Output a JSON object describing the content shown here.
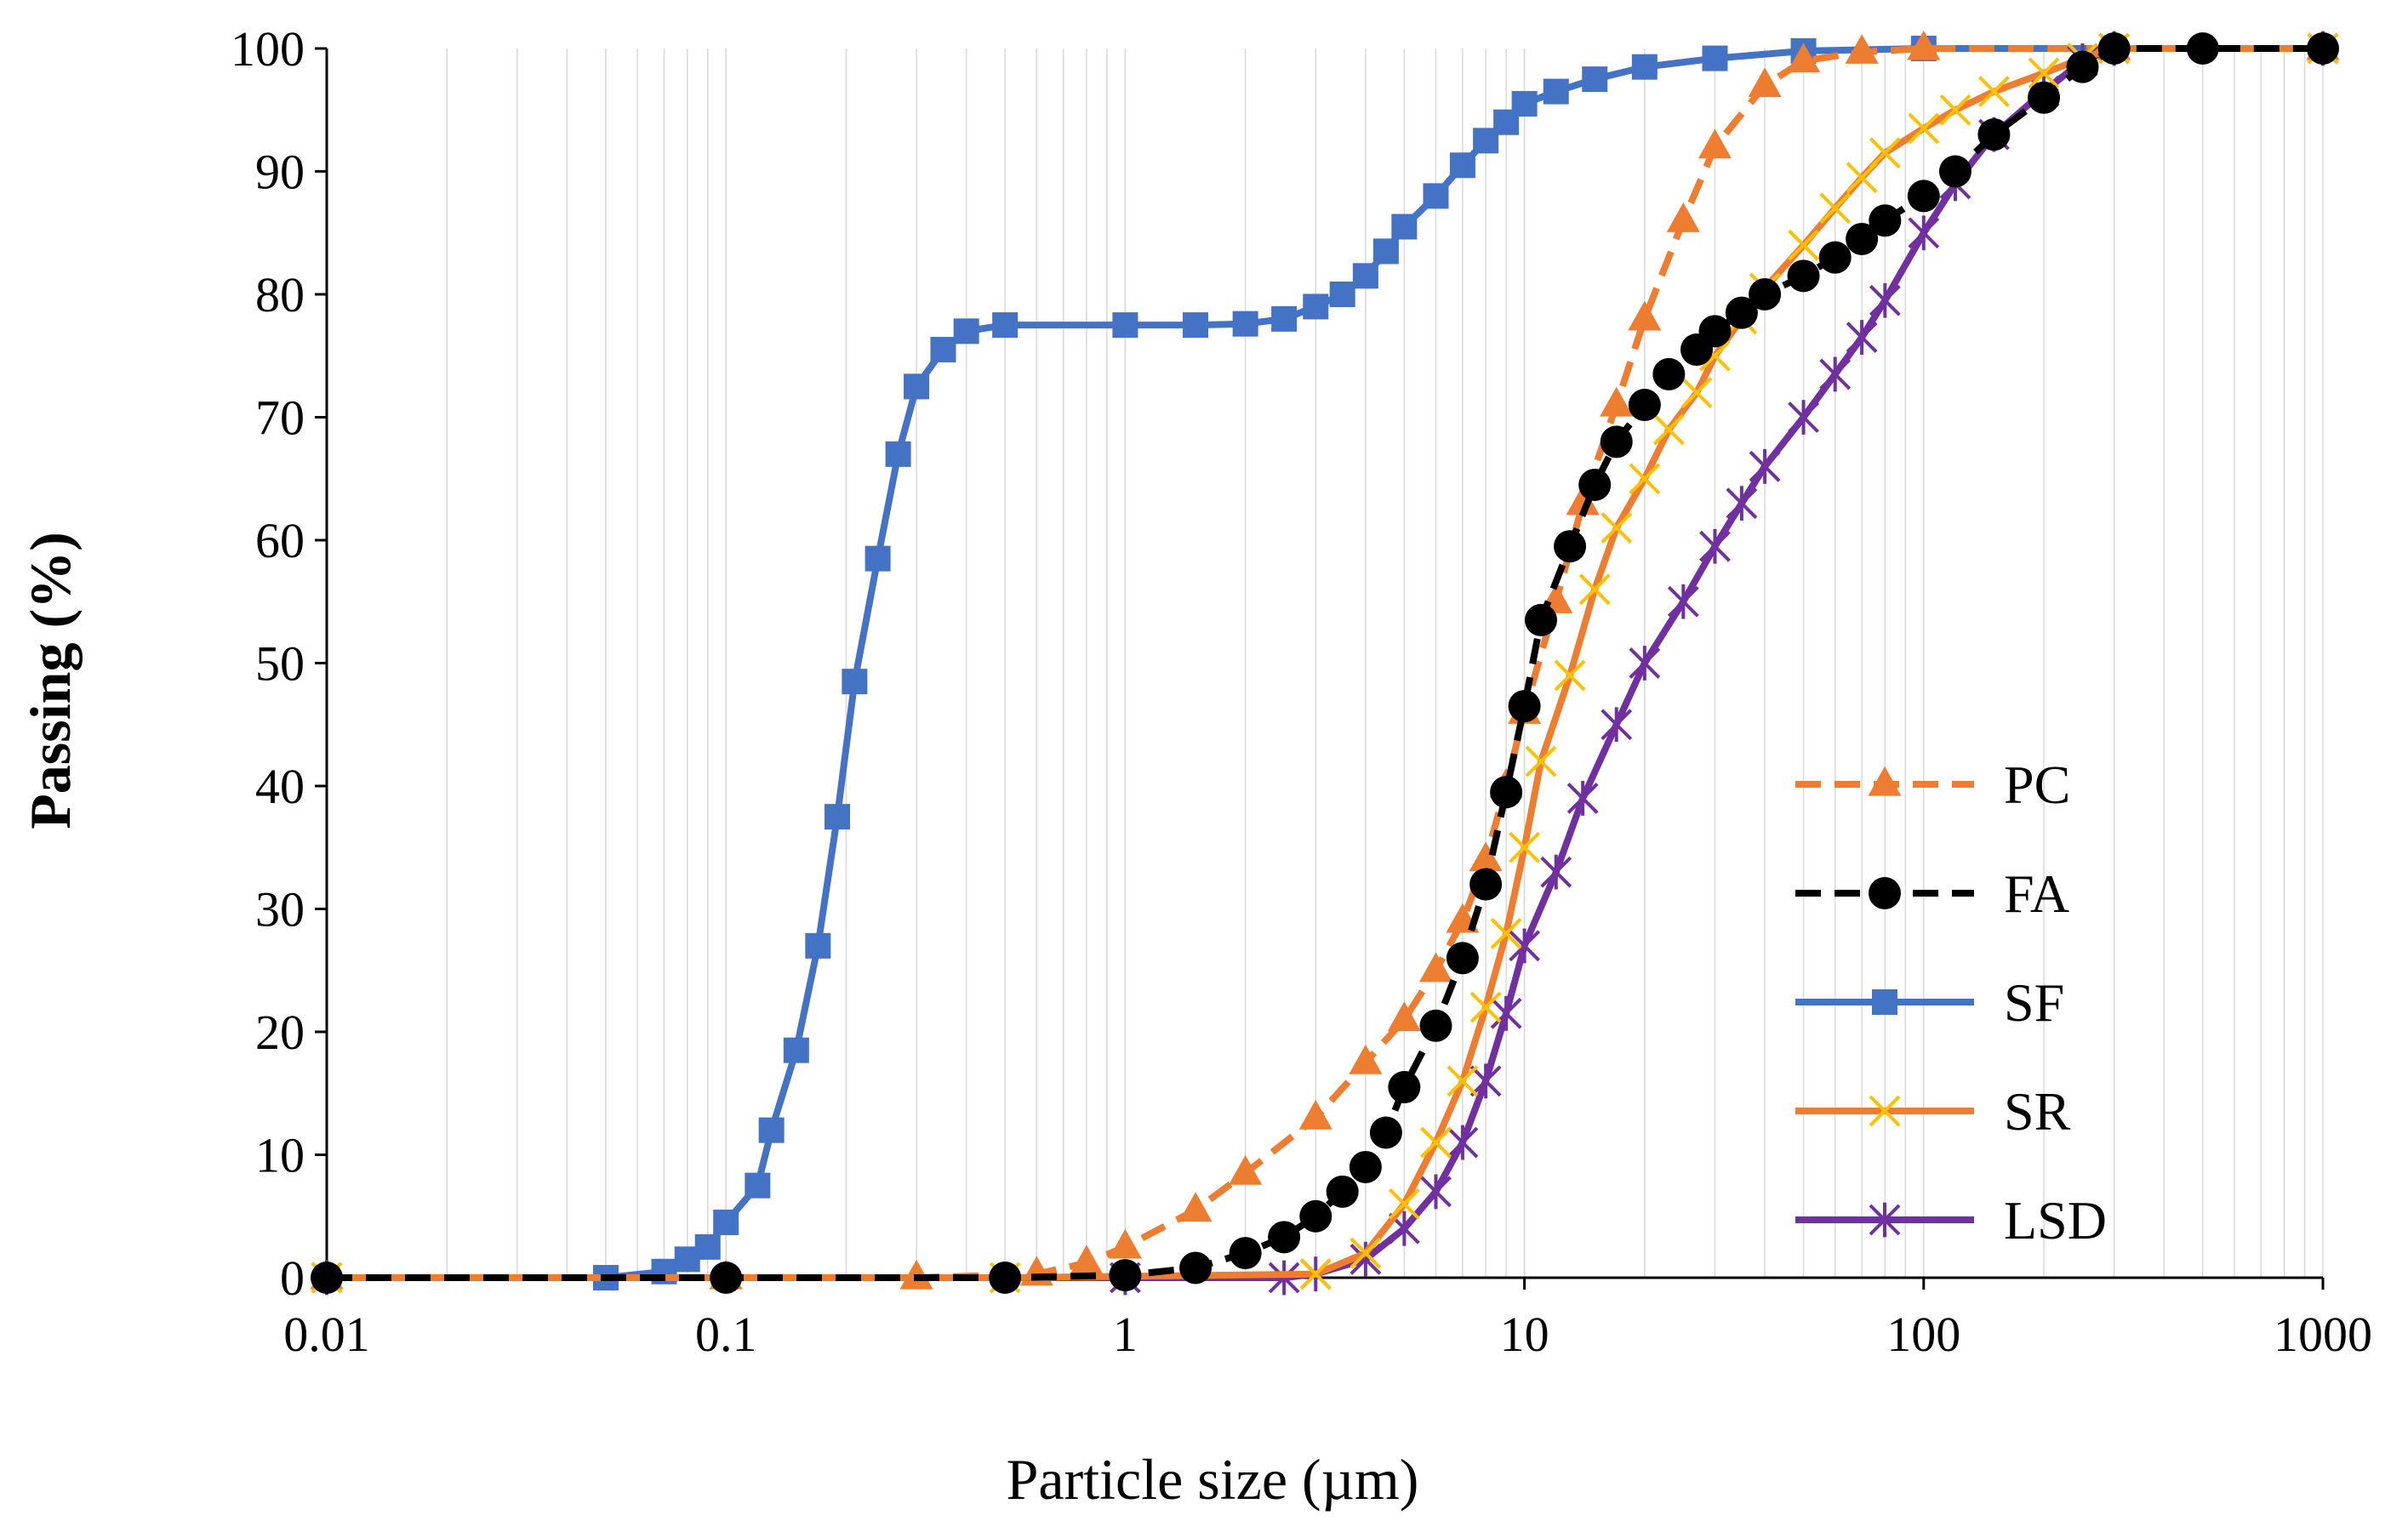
{
  "chart_data": {
    "type": "line",
    "title": "",
    "xlabel": "Particle size (µm)",
    "ylabel": "Passing (%)",
    "xscale": "log",
    "xlim": [
      0.01,
      1000
    ],
    "ylim": [
      0,
      100
    ],
    "grid": "vertical minor gridlines",
    "legend_position": "bottom-right",
    "x_ticks": [
      {
        "value": 0.01,
        "label": "0.01"
      },
      {
        "value": 0.1,
        "label": "0.1"
      },
      {
        "value": 1,
        "label": "1"
      },
      {
        "value": 10,
        "label": "10"
      },
      {
        "value": 100,
        "label": "100"
      },
      {
        "value": 1000,
        "label": "1000"
      }
    ],
    "y_ticks": [
      {
        "value": 0,
        "label": "0"
      },
      {
        "value": 10,
        "label": "10"
      },
      {
        "value": 20,
        "label": "20"
      },
      {
        "value": 30,
        "label": "30"
      },
      {
        "value": 40,
        "label": "40"
      },
      {
        "value": 50,
        "label": "50"
      },
      {
        "value": 60,
        "label": "60"
      },
      {
        "value": 70,
        "label": "70"
      },
      {
        "value": 80,
        "label": "80"
      },
      {
        "value": 90,
        "label": "90"
      },
      {
        "value": 100,
        "label": "100"
      }
    ],
    "series": [
      {
        "name": "PC",
        "color": "#ED7D31",
        "line": "dashed",
        "marker": "triangle",
        "points": [
          [
            0.01,
            0
          ],
          [
            0.1,
            0
          ],
          [
            0.3,
            0
          ],
          [
            0.6,
            0.3
          ],
          [
            0.8,
            1.2
          ],
          [
            1,
            2.5
          ],
          [
            1.5,
            5.5
          ],
          [
            2,
            8.5
          ],
          [
            3,
            13
          ],
          [
            4,
            17.5
          ],
          [
            5,
            21
          ],
          [
            6,
            25
          ],
          [
            7,
            29
          ],
          [
            8,
            34
          ],
          [
            9,
            40
          ],
          [
            10,
            46
          ],
          [
            12,
            55
          ],
          [
            14,
            63
          ],
          [
            17,
            71
          ],
          [
            20,
            78
          ],
          [
            25,
            86
          ],
          [
            30,
            92
          ],
          [
            40,
            97
          ],
          [
            50,
            99
          ],
          [
            70,
            99.7
          ],
          [
            100,
            100
          ],
          [
            300,
            100
          ],
          [
            1000,
            100
          ]
        ]
      },
      {
        "name": "FA",
        "color": "#000000",
        "line": "dashed",
        "marker": "circle",
        "points": [
          [
            0.01,
            0
          ],
          [
            0.1,
            0
          ],
          [
            0.5,
            0
          ],
          [
            1,
            0.2
          ],
          [
            1.5,
            0.8
          ],
          [
            2,
            2
          ],
          [
            2.5,
            3.3
          ],
          [
            3,
            5
          ],
          [
            3.5,
            7
          ],
          [
            4,
            9
          ],
          [
            4.5,
            11.8
          ],
          [
            5,
            15.5
          ],
          [
            6,
            20.5
          ],
          [
            7,
            26
          ],
          [
            8,
            32
          ],
          [
            9,
            39.5
          ],
          [
            10,
            46.5
          ],
          [
            11,
            53.5
          ],
          [
            13,
            59.5
          ],
          [
            15,
            64.5
          ],
          [
            17,
            68
          ],
          [
            20,
            71
          ],
          [
            23,
            73.5
          ],
          [
            27,
            75.5
          ],
          [
            30,
            77
          ],
          [
            35,
            78.5
          ],
          [
            40,
            80
          ],
          [
            50,
            81.5
          ],
          [
            60,
            83
          ],
          [
            70,
            84.5
          ],
          [
            80,
            86
          ],
          [
            100,
            88
          ],
          [
            120,
            90
          ],
          [
            150,
            93
          ],
          [
            200,
            96
          ],
          [
            250,
            98.5
          ],
          [
            300,
            100
          ],
          [
            500,
            100
          ],
          [
            1000,
            100
          ]
        ]
      },
      {
        "name": "SF",
        "color": "#4472C4",
        "line": "solid",
        "marker": "square",
        "points": [
          [
            0.01,
            0
          ],
          [
            0.05,
            0
          ],
          [
            0.07,
            0.5
          ],
          [
            0.08,
            1.5
          ],
          [
            0.09,
            2.5
          ],
          [
            0.1,
            4.5
          ],
          [
            0.12,
            7.5
          ],
          [
            0.13,
            12
          ],
          [
            0.15,
            18.5
          ],
          [
            0.17,
            27
          ],
          [
            0.19,
            37.5
          ],
          [
            0.21,
            48.5
          ],
          [
            0.24,
            58.5
          ],
          [
            0.27,
            67
          ],
          [
            0.3,
            72.5
          ],
          [
            0.35,
            75.5
          ],
          [
            0.4,
            77
          ],
          [
            0.5,
            77.5
          ],
          [
            1,
            77.5
          ],
          [
            1.5,
            77.5
          ],
          [
            2,
            77.6
          ],
          [
            2.5,
            78
          ],
          [
            3,
            79
          ],
          [
            3.5,
            80
          ],
          [
            4,
            81.5
          ],
          [
            4.5,
            83.5
          ],
          [
            5,
            85.5
          ],
          [
            6,
            88
          ],
          [
            7,
            90.5
          ],
          [
            8,
            92.5
          ],
          [
            9,
            94
          ],
          [
            10,
            95.5
          ],
          [
            12,
            96.5
          ],
          [
            15,
            97.5
          ],
          [
            20,
            98.5
          ],
          [
            30,
            99.2
          ],
          [
            50,
            99.8
          ],
          [
            100,
            100
          ],
          [
            1000,
            100
          ]
        ]
      },
      {
        "name": "SR",
        "color": "#FFC000",
        "line_color": "#ED7D31",
        "line": "solid",
        "marker": "x",
        "points": [
          [
            0.01,
            0
          ],
          [
            0.5,
            0
          ],
          [
            3,
            0.3
          ],
          [
            4,
            2
          ],
          [
            5,
            6
          ],
          [
            6,
            11
          ],
          [
            7,
            16
          ],
          [
            8,
            22
          ],
          [
            9,
            28
          ],
          [
            10,
            35
          ],
          [
            11,
            42
          ],
          [
            13,
            49
          ],
          [
            15,
            56
          ],
          [
            17,
            61
          ],
          [
            20,
            65
          ],
          [
            23,
            69
          ],
          [
            27,
            72
          ],
          [
            30,
            75
          ],
          [
            35,
            78
          ],
          [
            40,
            80.5
          ],
          [
            50,
            84
          ],
          [
            60,
            87
          ],
          [
            70,
            89.5
          ],
          [
            80,
            91.5
          ],
          [
            100,
            93.5
          ],
          [
            120,
            95
          ],
          [
            150,
            96.5
          ],
          [
            200,
            98
          ],
          [
            250,
            99.2
          ],
          [
            300,
            100
          ],
          [
            1000,
            100
          ]
        ]
      },
      {
        "name": "LSD",
        "color": "#7030A0",
        "line": "solid",
        "marker": "asterisk",
        "points": [
          [
            0.01,
            0
          ],
          [
            1,
            0
          ],
          [
            2.5,
            0
          ],
          [
            3,
            0.3
          ],
          [
            4,
            1.5
          ],
          [
            5,
            4
          ],
          [
            6,
            7
          ],
          [
            7,
            11
          ],
          [
            8,
            16
          ],
          [
            9,
            21.5
          ],
          [
            10,
            27
          ],
          [
            12,
            33
          ],
          [
            14,
            39
          ],
          [
            17,
            45
          ],
          [
            20,
            50
          ],
          [
            25,
            55
          ],
          [
            30,
            59.5
          ],
          [
            35,
            63
          ],
          [
            40,
            66
          ],
          [
            50,
            70
          ],
          [
            60,
            73.5
          ],
          [
            70,
            76.5
          ],
          [
            80,
            79.5
          ],
          [
            100,
            85
          ],
          [
            120,
            89
          ],
          [
            150,
            93
          ],
          [
            200,
            96.5
          ],
          [
            250,
            99
          ],
          [
            300,
            100
          ],
          [
            1000,
            100
          ]
        ]
      }
    ]
  }
}
